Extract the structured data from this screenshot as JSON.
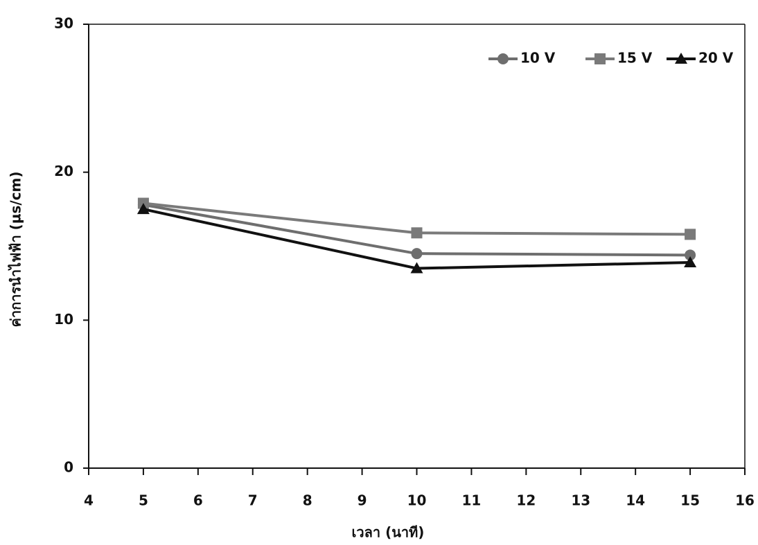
{
  "chart_data": {
    "type": "line",
    "x_label": "เวลา (นาที)",
    "y_label": "ค่าการนำไฟฟ้า (µs/cm)",
    "x": [
      5,
      10,
      15
    ],
    "series": [
      {
        "name": "10 V",
        "color": "#6e6e6e",
        "marker": "circle",
        "values": [
          17.8,
          14.5,
          14.4
        ]
      },
      {
        "name": "15 V",
        "color": "#7a7a7a",
        "marker": "square",
        "values": [
          17.9,
          15.9,
          15.8
        ]
      },
      {
        "name": "20 V",
        "color": "#111111",
        "marker": "triangle",
        "values": [
          17.5,
          13.5,
          13.9
        ]
      }
    ],
    "xlim": [
      4,
      16
    ],
    "xticks": [
      4,
      5,
      6,
      7,
      8,
      9,
      10,
      11,
      12,
      13,
      14,
      15,
      16
    ],
    "ylim": [
      0,
      30
    ],
    "yticks": [
      0,
      10,
      20,
      30
    ],
    "legend": "top-right"
  }
}
